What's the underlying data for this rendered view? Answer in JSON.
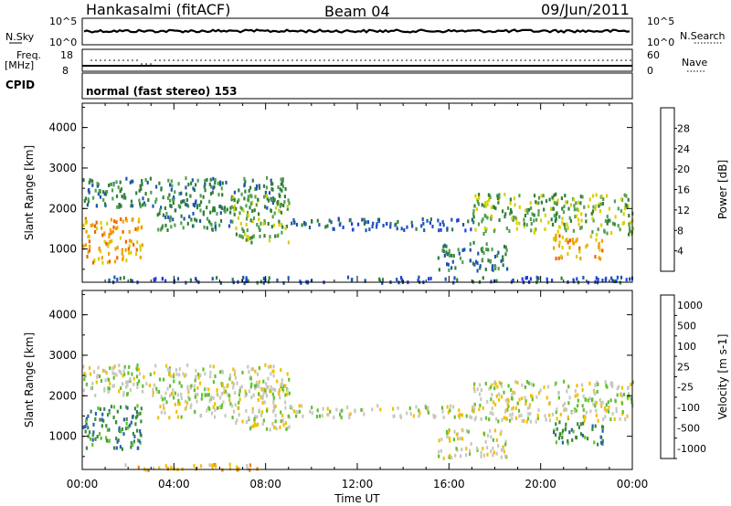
{
  "header": {
    "title": "Hankasalmi (fitACF)",
    "beam": "Beam 04",
    "date": "09/Jun/2011"
  },
  "status_panels": {
    "nsky_label": "N.Sky",
    "nsearch_label": "N.Search",
    "nsky_ticks": [
      "10^5",
      "10^0"
    ],
    "nsearch_ticks": [
      "10^5",
      "10^0"
    ],
    "freq_label_line1": "Freq.",
    "freq_label_line2": "[MHz]",
    "freq_ticks": [
      "18",
      "8"
    ],
    "nave_label": "Nave",
    "nave_ticks": [
      "60",
      "0"
    ],
    "cpid_label": "CPID",
    "cpid_text": "normal (fast stereo) 153",
    "colors": {
      "black": "#000000"
    }
  },
  "chart_data": [
    {
      "type": "heatmap",
      "name": "power",
      "ylabel": "Slant Range [km]",
      "ylim": [
        180,
        4600
      ],
      "xlim_hours": [
        0,
        24
      ],
      "yticks": [
        "1000",
        "2000",
        "3000",
        "4000"
      ],
      "colorbar": {
        "label": "Power [dB]",
        "ticks": [
          "4",
          "8",
          "12",
          "16",
          "20",
          "24",
          "28"
        ],
        "colors": [
          "#1f3fe0",
          "#1e55b0",
          "#2f7f3a",
          "#50a050",
          "#d8d000",
          "#f0a000",
          "#f06000",
          "#e00000"
        ]
      },
      "echo_bands": [
        {
          "t0": 0.0,
          "t1": 2.6,
          "r0": 700,
          "r1": 1800,
          "level": 5
        },
        {
          "t0": 0.0,
          "t1": 9.0,
          "r0": 2050,
          "r1": 2800,
          "level": 2
        },
        {
          "t0": 3.2,
          "t1": 6.5,
          "r0": 1500,
          "r1": 2100,
          "level": 2
        },
        {
          "t0": 6.5,
          "t1": 9.0,
          "r0": 1200,
          "r1": 2400,
          "level": 3
        },
        {
          "t0": 9.0,
          "t1": 17.0,
          "r0": 1500,
          "r1": 1800,
          "level": 1
        },
        {
          "t0": 15.5,
          "t1": 18.5,
          "r0": 500,
          "r1": 1200,
          "level": 2
        },
        {
          "t0": 17.0,
          "t1": 24.0,
          "r0": 1400,
          "r1": 2400,
          "level": 3
        },
        {
          "t0": 20.5,
          "t1": 22.7,
          "r0": 800,
          "r1": 1400,
          "level": 5
        },
        {
          "t0": 0.0,
          "t1": 24.0,
          "r0": 200,
          "r1": 350,
          "level": 1
        }
      ]
    },
    {
      "type": "heatmap",
      "name": "velocity",
      "ylabel": "Slant Range [km]",
      "xlabel": "Time UT",
      "ylim": [
        180,
        4600
      ],
      "xlim_hours": [
        0,
        24
      ],
      "yticks": [
        "1000",
        "2000",
        "3000",
        "4000"
      ],
      "xticks": [
        "00:00",
        "04:00",
        "08:00",
        "12:00",
        "16:00",
        "20:00",
        "00:00"
      ],
      "colorbar": {
        "label": "Velocity [m s-1]",
        "ticks": [
          "1000",
          "500",
          "100",
          "25",
          "-25",
          "-100",
          "-500",
          "-1000"
        ],
        "colors": [
          "#1f3fe0",
          "#2c60b0",
          "#3b8a3b",
          "#5fc030",
          "#c8c8c0",
          "#f0c000",
          "#f08000",
          "#e00000"
        ]
      },
      "echo_bands": [
        {
          "t0": 0.0,
          "t1": 2.6,
          "r0": 700,
          "r1": 1800,
          "level": 2
        },
        {
          "t0": 0.0,
          "t1": 9.0,
          "r0": 2050,
          "r1": 2800,
          "level": 4
        },
        {
          "t0": 3.2,
          "t1": 6.5,
          "r0": 1500,
          "r1": 2100,
          "level": 4
        },
        {
          "t0": 6.5,
          "t1": 9.0,
          "r0": 1200,
          "r1": 2400,
          "level": 4
        },
        {
          "t0": 9.0,
          "t1": 17.0,
          "r0": 1500,
          "r1": 1800,
          "level": 4
        },
        {
          "t0": 15.5,
          "t1": 18.5,
          "r0": 500,
          "r1": 1200,
          "level": 4
        },
        {
          "t0": 17.0,
          "t1": 24.0,
          "r0": 1400,
          "r1": 2400,
          "level": 4
        },
        {
          "t0": 20.5,
          "t1": 22.7,
          "r0": 800,
          "r1": 1400,
          "level": 2
        },
        {
          "t0": 1.5,
          "t1": 8.0,
          "r0": 200,
          "r1": 350,
          "level": 5
        }
      ]
    }
  ]
}
